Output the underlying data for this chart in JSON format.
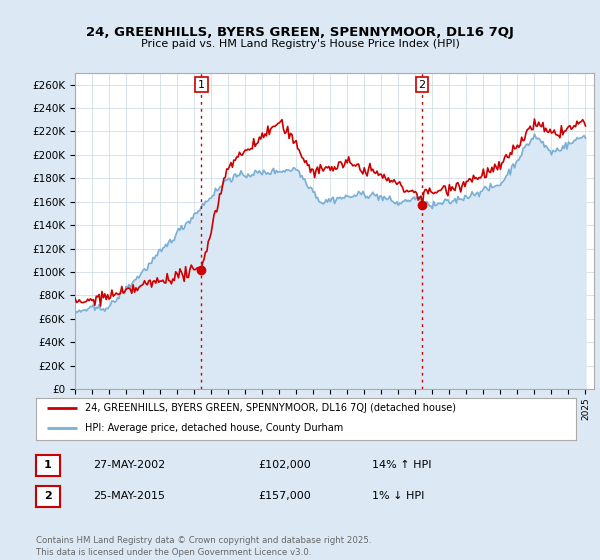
{
  "title_line1": "24, GREENHILLS, BYERS GREEN, SPENNYMOOR, DL16 7QJ",
  "title_line2": "Price paid vs. HM Land Registry's House Price Index (HPI)",
  "ylim": [
    0,
    270000
  ],
  "yticks": [
    0,
    20000,
    40000,
    60000,
    80000,
    100000,
    120000,
    140000,
    160000,
    180000,
    200000,
    220000,
    240000,
    260000
  ],
  "ytick_labels": [
    "£0",
    "£20K",
    "£40K",
    "£60K",
    "£80K",
    "£100K",
    "£120K",
    "£140K",
    "£160K",
    "£180K",
    "£200K",
    "£220K",
    "£240K",
    "£260K"
  ],
  "xlim_start": 1995.0,
  "xlim_end": 2025.5,
  "hpi_color": "#7bafd4",
  "hpi_fill_color": "#dae8f5",
  "price_color": "#cc0000",
  "vline_color": "#cc0000",
  "marker1_year": 2002.42,
  "marker1_price": 102000,
  "marker1_label": "1",
  "marker2_year": 2015.4,
  "marker2_price": 157000,
  "marker2_label": "2",
  "legend_line1": "24, GREENHILLS, BYERS GREEN, SPENNYMOOR, DL16 7QJ (detached house)",
  "legend_line2": "HPI: Average price, detached house, County Durham",
  "table_row1": [
    "1",
    "27-MAY-2002",
    "£102,000",
    "14% ↑ HPI"
  ],
  "table_row2": [
    "2",
    "25-MAY-2015",
    "£157,000",
    "1% ↓ HPI"
  ],
  "footer": "Contains HM Land Registry data © Crown copyright and database right 2025.\nThis data is licensed under the Open Government Licence v3.0.",
  "bg_color": "#dce9f5",
  "plot_bg": "#ffffff",
  "grid_color": "#c8d8e8"
}
